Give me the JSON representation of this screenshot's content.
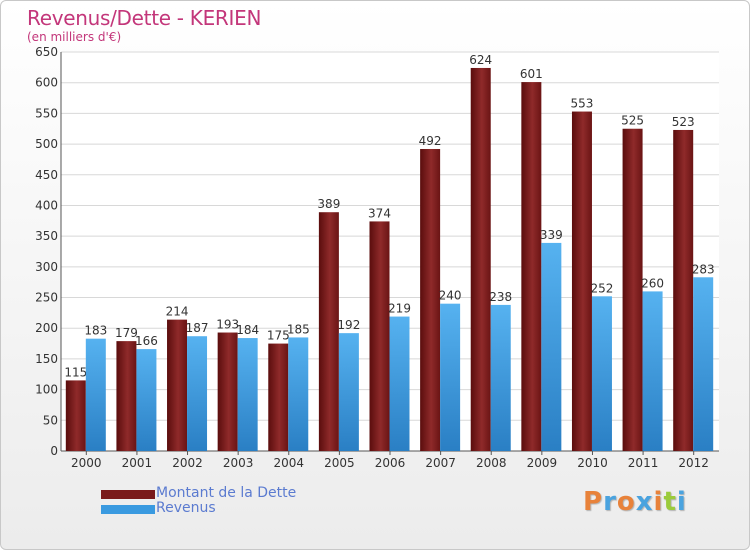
{
  "title": "Revenus/Dette - KERIEN",
  "subtitle": "(en milliers d'€)",
  "brand": {
    "text": "Proxiti",
    "colors": [
      "#e8823a",
      "#4aa3df",
      "#e8823a",
      "#4aa3df",
      "#e8823a",
      "#9bcb3b",
      "#4aa3df"
    ]
  },
  "chart_data": {
    "type": "bar",
    "categories": [
      "2000",
      "2001",
      "2002",
      "2003",
      "2004",
      "2005",
      "2006",
      "2007",
      "2008",
      "2009",
      "2010",
      "2011",
      "2012"
    ],
    "series": [
      {
        "name": "Montant de la Dette",
        "color": "#7a1a1a",
        "values": [
          115,
          179,
          214,
          193,
          175,
          389,
          374,
          492,
          624,
          601,
          553,
          525,
          523
        ]
      },
      {
        "name": "Revenus",
        "color": "#3a9ae0",
        "values": [
          183,
          166,
          187,
          184,
          185,
          192,
          219,
          240,
          238,
          339,
          252,
          260,
          283
        ]
      }
    ],
    "ylim": [
      0,
      650
    ],
    "yticks": [
      0,
      50,
      100,
      150,
      200,
      250,
      300,
      350,
      400,
      450,
      500,
      550,
      600,
      650
    ],
    "grid": true,
    "legend": "bottom-left"
  }
}
